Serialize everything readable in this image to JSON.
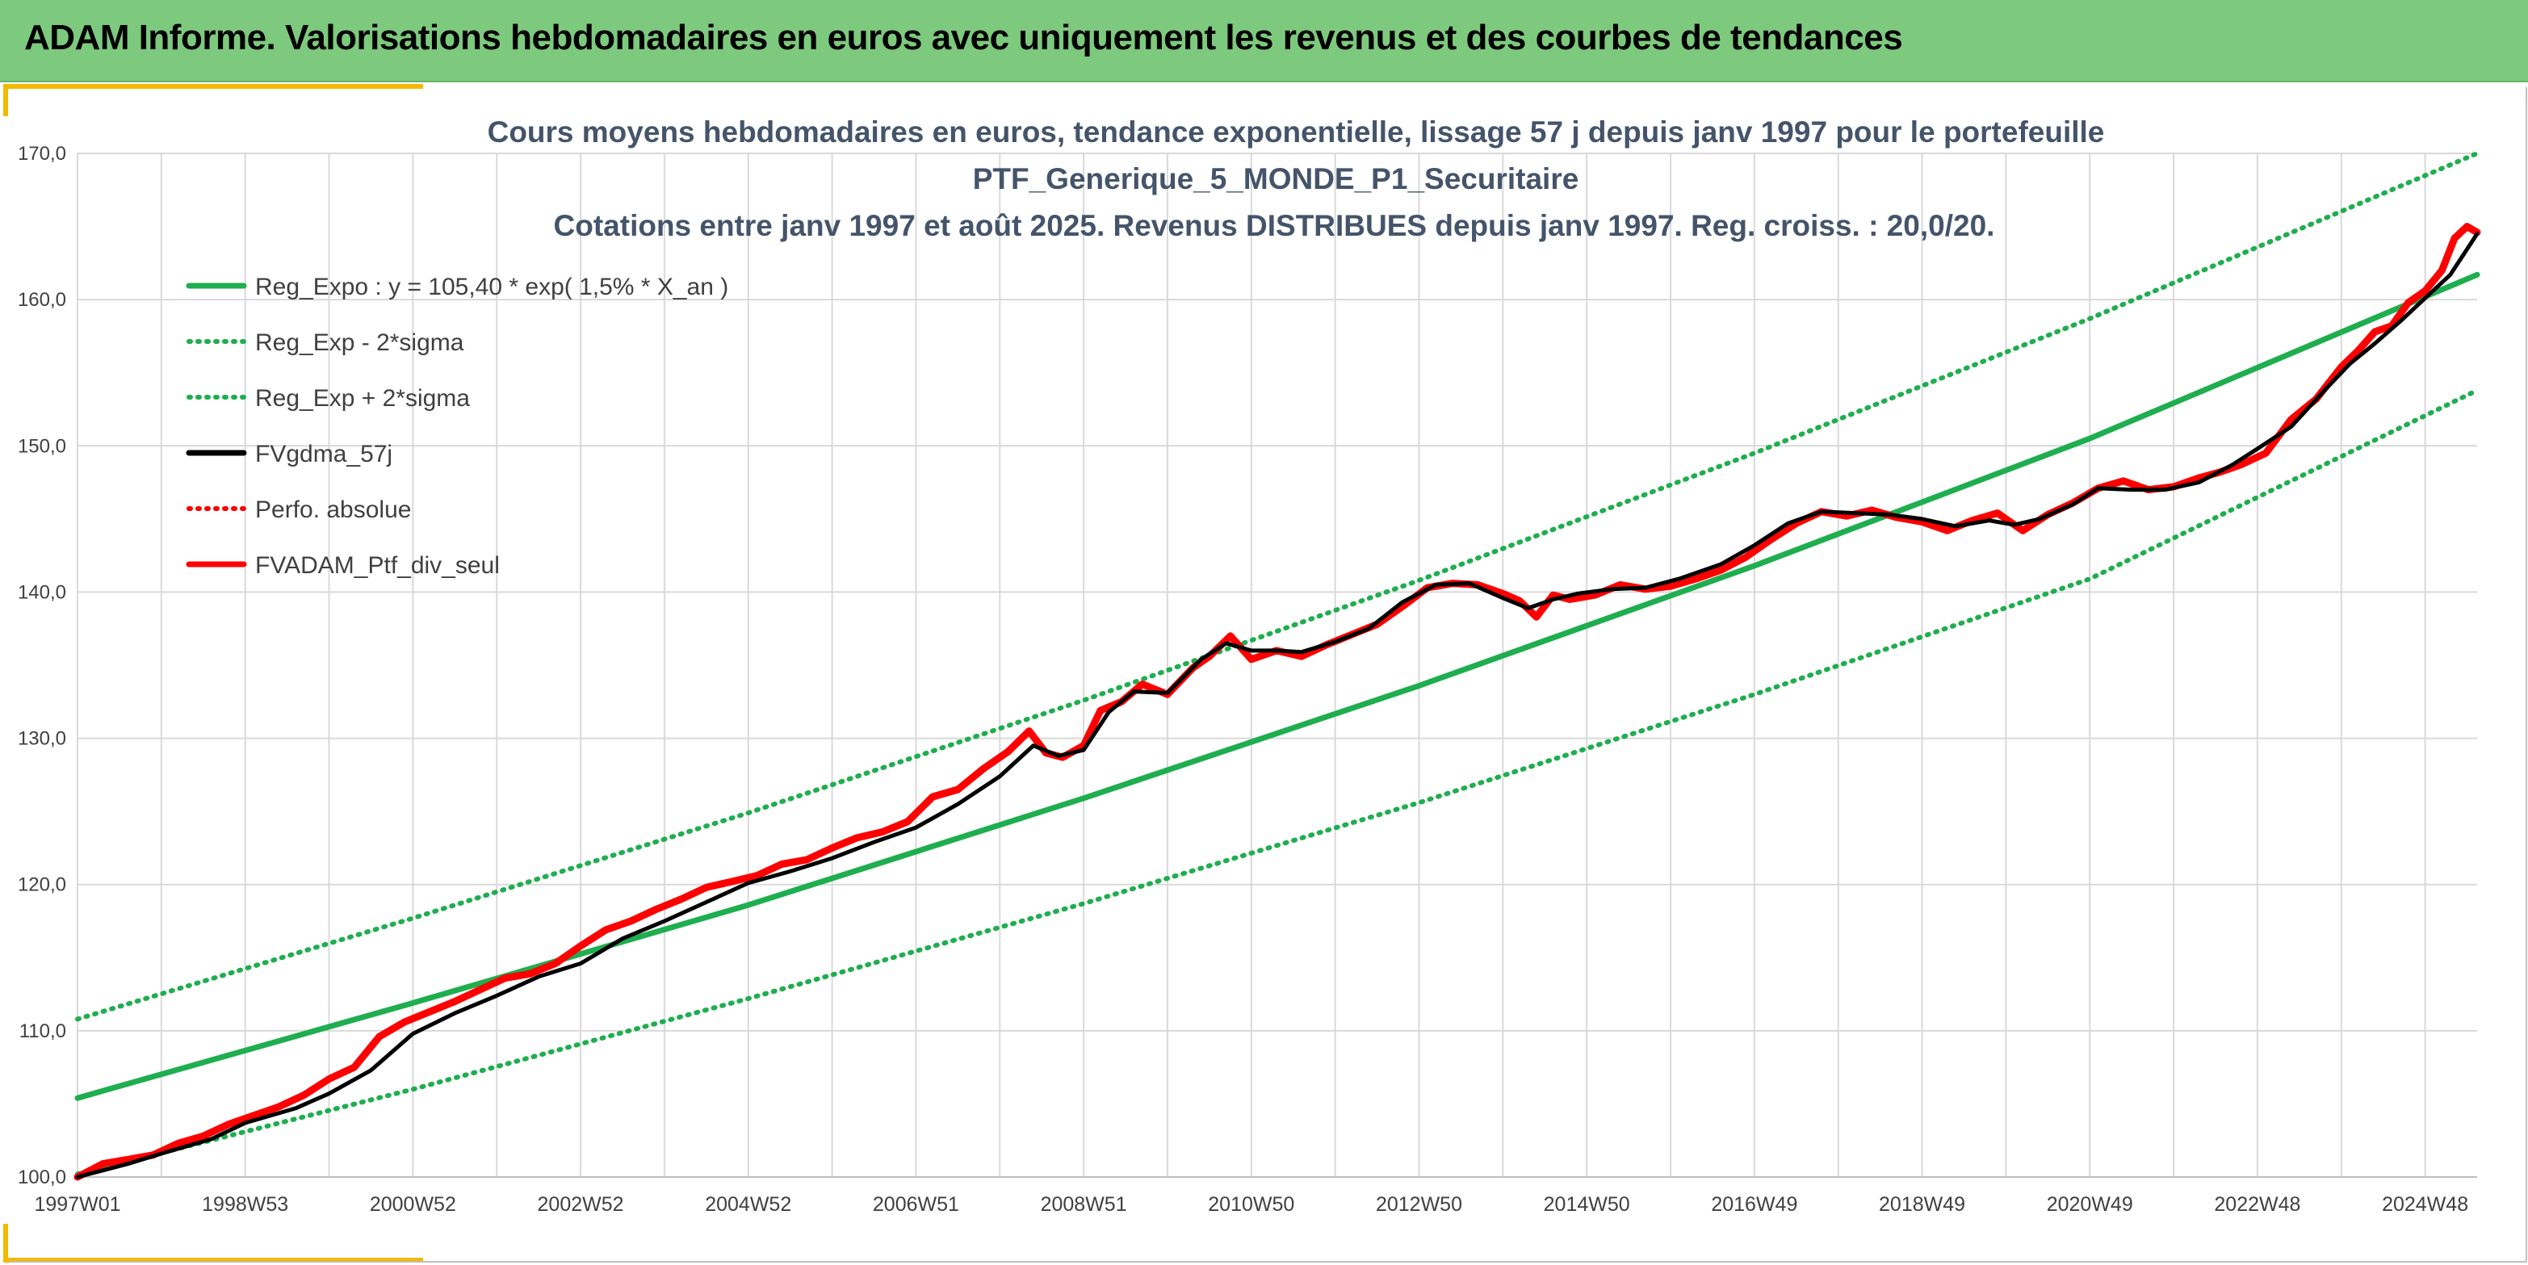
{
  "header": {
    "title": "ADAM Informe. Valorisations hebdomadaires en euros avec uniquement les revenus et des courbes de tendances"
  },
  "colors": {
    "header_bg": "#7dc97d",
    "accent": "#f5b800",
    "trend": "#1fae4f",
    "actual": "#ff0000",
    "smooth": "#000000",
    "grid": "#d9d9d9"
  },
  "chart_data": {
    "type": "line",
    "title_lines": [
      "Cours moyens hebdomadaires en euros, tendance exponentielle, lissage 57 j depuis janv 1997 pour le portefeuille",
      "PTF_Generique_5_MONDE_P1_Securitaire",
      "Cotations entre janv 1997 et août 2025. Revenus DISTRIBUES depuis janv 1997. Reg. croiss. : 20,0/20."
    ],
    "xlabel": "",
    "ylabel": "",
    "x_range": [
      1997.0,
      2025.62
    ],
    "ylim": [
      100,
      170
    ],
    "y_ticks": [
      "100,0",
      "110,0",
      "120,0",
      "130,0",
      "140,0",
      "150,0",
      "160,0",
      "170,0"
    ],
    "x_ticks": [
      {
        "label": "1997W01",
        "x": 1997.0
      },
      {
        "label": "1998W53",
        "x": 1999.0
      },
      {
        "label": "2000W52",
        "x": 2001.0
      },
      {
        "label": "2002W52",
        "x": 2003.0
      },
      {
        "label": "2004W52",
        "x": 2005.0
      },
      {
        "label": "2006W51",
        "x": 2007.0
      },
      {
        "label": "2008W51",
        "x": 2009.0
      },
      {
        "label": "2010W50",
        "x": 2011.0
      },
      {
        "label": "2012W50",
        "x": 2013.0
      },
      {
        "label": "2014W50",
        "x": 2015.0
      },
      {
        "label": "2016W49",
        "x": 2017.0
      },
      {
        "label": "2018W49",
        "x": 2019.0
      },
      {
        "label": "2020W49",
        "x": 2021.0
      },
      {
        "label": "2022W48",
        "x": 2023.0
      },
      {
        "label": "2024W48",
        "x": 2025.0
      }
    ],
    "grid": true,
    "legend_position": "top-left",
    "legend": [
      {
        "label": "Reg_Expo : y = 105,40 * exp( 1,5% *  X_an )",
        "style": "solid",
        "color": "#1fae4f"
      },
      {
        "label": "Reg_Exp - 2*sigma",
        "style": "dotted",
        "color": "#1fae4f"
      },
      {
        "label": "Reg_Exp + 2*sigma",
        "style": "dotted",
        "color": "#1fae4f"
      },
      {
        "label": "FVgdma_57j",
        "style": "solid",
        "color": "#000000"
      },
      {
        "label": "Perfo. absolue",
        "style": "dotted",
        "color": "#ff0000"
      },
      {
        "label": "FVADAM_Ptf_div_seul",
        "style": "solid",
        "color": "#ff0000"
      }
    ],
    "series": [
      {
        "name": "Reg_Expo : y = 105,40 * exp( 1,5% *  X_an )",
        "x": [
          1997.0,
          2001.0,
          2005.0,
          2009.0,
          2013.0,
          2017.0,
          2021.0,
          2025.62
        ],
        "y": [
          105.4,
          111.9,
          118.6,
          125.9,
          133.6,
          141.8,
          150.5,
          161.7
        ]
      },
      {
        "name": "Reg_Exp - 2*sigma",
        "x": [
          1997.0,
          2001.0,
          2005.0,
          2009.0,
          2013.0,
          2017.0,
          2021.0,
          2025.62
        ],
        "y": [
          100.2,
          106.0,
          112.2,
          118.7,
          125.6,
          133.0,
          140.9,
          153.8
        ]
      },
      {
        "name": "Reg_Exp + 2*sigma",
        "x": [
          1997.0,
          2001.0,
          2005.0,
          2009.0,
          2013.0,
          2017.0,
          2021.0,
          2025.62
        ],
        "y": [
          110.8,
          117.7,
          124.9,
          132.6,
          140.8,
          149.5,
          158.7,
          170.0
        ]
      },
      {
        "name": "FVgdma_57j",
        "x": [
          1997.0,
          1997.6,
          1998.0,
          1998.6,
          1999.0,
          1999.6,
          2000.0,
          2000.5,
          2001.0,
          2001.5,
          2002.0,
          2002.5,
          2003.0,
          2003.5,
          2004.0,
          2004.5,
          2005.0,
          2005.5,
          2006.0,
          2006.5,
          2007.0,
          2007.5,
          2008.0,
          2008.4,
          2008.7,
          2009.0,
          2009.3,
          2009.6,
          2010.0,
          2010.4,
          2010.7,
          2011.0,
          2011.3,
          2011.6,
          2012.0,
          2012.4,
          2012.8,
          2013.2,
          2013.6,
          2014.0,
          2014.3,
          2014.6,
          2014.9,
          2015.3,
          2015.7,
          2016.1,
          2016.6,
          2017.0,
          2017.4,
          2017.8,
          2018.2,
          2018.6,
          2019.0,
          2019.4,
          2019.8,
          2020.1,
          2020.4,
          2020.8,
          2021.1,
          2021.5,
          2021.9,
          2022.3,
          2022.7,
          2023.0,
          2023.4,
          2023.8,
          2024.1,
          2024.4,
          2024.7,
          2025.0,
          2025.3,
          2025.62
        ],
        "y": [
          100.0,
          100.9,
          101.6,
          102.6,
          103.7,
          104.7,
          105.7,
          107.3,
          109.8,
          111.2,
          112.4,
          113.7,
          114.6,
          116.3,
          117.5,
          118.8,
          120.1,
          120.9,
          121.8,
          122.9,
          123.9,
          125.5,
          127.4,
          129.5,
          128.8,
          129.2,
          131.8,
          133.2,
          133.1,
          135.4,
          136.5,
          136.0,
          136.0,
          135.9,
          136.6,
          137.5,
          139.3,
          140.5,
          140.6,
          139.6,
          138.9,
          139.5,
          139.9,
          140.2,
          140.3,
          140.9,
          141.9,
          143.2,
          144.7,
          145.5,
          145.4,
          145.3,
          145.0,
          144.5,
          144.9,
          144.6,
          145.0,
          146.0,
          147.1,
          147.0,
          147.0,
          147.5,
          148.7,
          149.8,
          151.3,
          153.8,
          155.6,
          157.0,
          158.5,
          160.1,
          161.7,
          164.5
        ]
      },
      {
        "name": "FVADAM_Ptf_div_seul",
        "x": [
          1997.0,
          1997.3,
          1997.6,
          1997.9,
          1998.2,
          1998.5,
          1998.8,
          1999.1,
          1999.4,
          1999.7,
          2000.0,
          2000.3,
          2000.6,
          2000.9,
          2001.2,
          2001.5,
          2001.8,
          2002.1,
          2002.4,
          2002.7,
          2003.0,
          2003.3,
          2003.6,
          2003.9,
          2004.2,
          2004.5,
          2004.8,
          2005.1,
          2005.4,
          2005.7,
          2006.0,
          2006.3,
          2006.6,
          2006.9,
          2007.2,
          2007.5,
          2007.8,
          2008.1,
          2008.35,
          2008.55,
          2008.75,
          2009.0,
          2009.2,
          2009.45,
          2009.7,
          2010.0,
          2010.3,
          2010.5,
          2010.75,
          2011.0,
          2011.3,
          2011.6,
          2011.9,
          2012.2,
          2012.5,
          2012.8,
          2013.1,
          2013.4,
          2013.7,
          2014.0,
          2014.2,
          2014.4,
          2014.6,
          2014.8,
          2015.1,
          2015.4,
          2015.7,
          2016.0,
          2016.3,
          2016.6,
          2016.9,
          2017.2,
          2017.5,
          2017.8,
          2018.1,
          2018.4,
          2018.7,
          2019.0,
          2019.3,
          2019.6,
          2019.9,
          2020.2,
          2020.5,
          2020.8,
          2021.1,
          2021.4,
          2021.7,
          2022.0,
          2022.3,
          2022.55,
          2022.8,
          2023.1,
          2023.4,
          2023.7,
          2024.0,
          2024.2,
          2024.4,
          2024.6,
          2024.8,
          2025.0,
          2025.2,
          2025.35,
          2025.5,
          2025.62
        ],
        "y": [
          100.0,
          100.9,
          101.2,
          101.5,
          102.3,
          102.8,
          103.6,
          104.2,
          104.8,
          105.6,
          106.7,
          107.5,
          109.6,
          110.6,
          111.3,
          112.0,
          112.8,
          113.6,
          113.9,
          114.6,
          115.8,
          116.9,
          117.5,
          118.3,
          119.0,
          119.8,
          120.2,
          120.6,
          121.4,
          121.7,
          122.5,
          123.2,
          123.6,
          124.3,
          126.0,
          126.5,
          127.9,
          129.1,
          130.5,
          129.0,
          128.7,
          129.5,
          131.9,
          132.5,
          133.7,
          133.0,
          134.8,
          135.6,
          137.0,
          135.4,
          136.0,
          135.6,
          136.4,
          137.1,
          137.8,
          139.0,
          140.3,
          140.6,
          140.5,
          139.9,
          139.4,
          138.3,
          139.8,
          139.5,
          139.8,
          140.5,
          140.2,
          140.4,
          140.9,
          141.5,
          142.4,
          143.6,
          144.7,
          145.5,
          145.2,
          145.6,
          145.1,
          144.8,
          144.2,
          144.9,
          145.4,
          144.2,
          145.3,
          146.1,
          147.1,
          147.6,
          147.0,
          147.2,
          147.8,
          148.2,
          148.7,
          149.5,
          151.8,
          153.2,
          155.4,
          156.5,
          157.8,
          158.2,
          159.8,
          160.6,
          162.0,
          164.2,
          165.0,
          164.6
        ]
      }
    ]
  }
}
